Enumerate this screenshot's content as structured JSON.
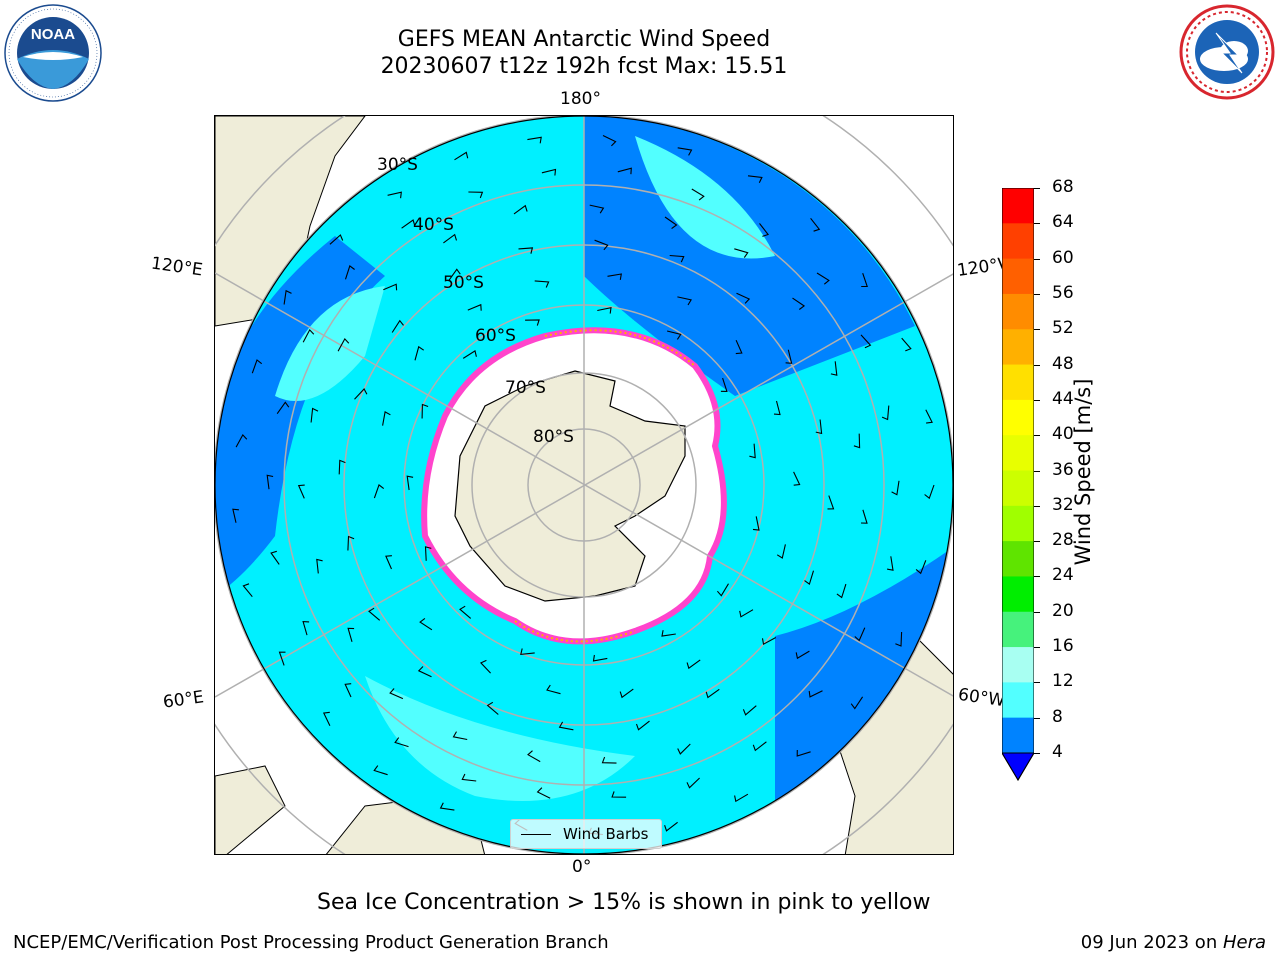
{
  "header": {
    "title_line1": "GEFS MEAN Antarctic Wind Speed",
    "title_line2": "20230607 t12z 192h fcst   Max: 15.51"
  },
  "logos": {
    "left": {
      "name": "noaa-logo",
      "text": "NOAA",
      "ring_text": "NATIONAL OCEANIC AND ATMOSPHERIC ADMINISTRATION · U.S. DEPARTMENT OF COMMERCE"
    },
    "right": {
      "name": "nws-logo",
      "ring_text": "NATIONAL WEATHER SERVICE"
    }
  },
  "map": {
    "projection": "south-polar-stereographic",
    "longitude_labels": {
      "top": "180°",
      "bottom": "0°",
      "upper_left": "120°E",
      "upper_right": "120°W",
      "lower_left": "60°E",
      "lower_right": "60°W"
    },
    "latitude_labels": [
      "30°S",
      "40°S",
      "50°S",
      "60°S",
      "70°S",
      "80°S"
    ],
    "legend": {
      "label": "Wind Barbs"
    },
    "colors": {
      "land": "#efedd9",
      "ice_edge": "#ff44cc",
      "ice_interior": "#ffffff",
      "grid": "#b0b0b0"
    }
  },
  "colorbar": {
    "label": "Wind Speed [m/s]",
    "ticks": [
      "68",
      "64",
      "60",
      "56",
      "52",
      "48",
      "44",
      "40",
      "36",
      "32",
      "28",
      "24",
      "20",
      "16",
      "12",
      "8",
      "4"
    ],
    "colors": [
      "#ff0000",
      "#ff4000",
      "#ff6000",
      "#ff8c00",
      "#ffb000",
      "#ffe000",
      "#ffff00",
      "#e8ff00",
      "#ccff00",
      "#a0ff00",
      "#5fe400",
      "#00ee00",
      "#46f27c",
      "#a8fff2",
      "#52ffff",
      "#00f0ff",
      "#0083ff"
    ],
    "under_color": "#0000ff"
  },
  "caption": "Sea Ice Concentration > 15% is shown in pink to yellow",
  "footer": {
    "left": "NCEP/EMC/Verification Post Processing Product Generation Branch",
    "right_date": "09 Jun 2023 on ",
    "right_host": "Hera"
  }
}
